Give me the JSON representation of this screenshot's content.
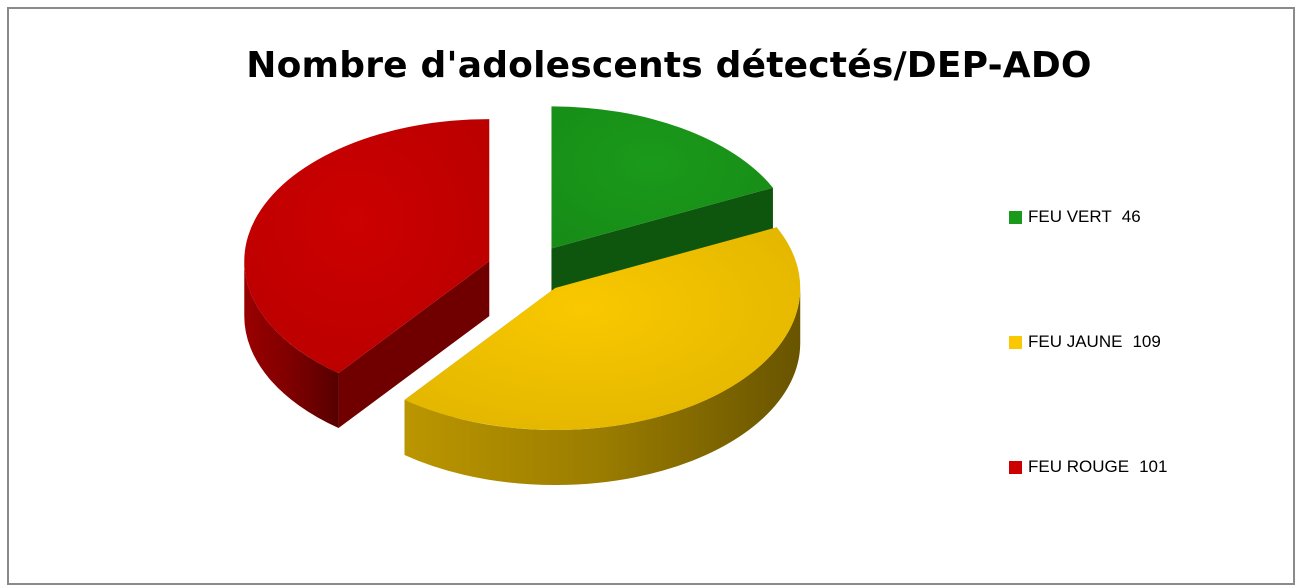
{
  "chart_data": {
    "type": "pie",
    "title": "Nombre d'adolescents détectés/DEP-ADO",
    "categories": [
      "FEU VERT",
      "FEU JAUNE",
      "FEU ROUGE"
    ],
    "values": [
      46,
      109,
      101
    ],
    "colors": [
      "#1a9a1a",
      "#f9c800",
      "#cc0000"
    ],
    "legend_position": "right",
    "exploded": true,
    "style": "3d"
  }
}
